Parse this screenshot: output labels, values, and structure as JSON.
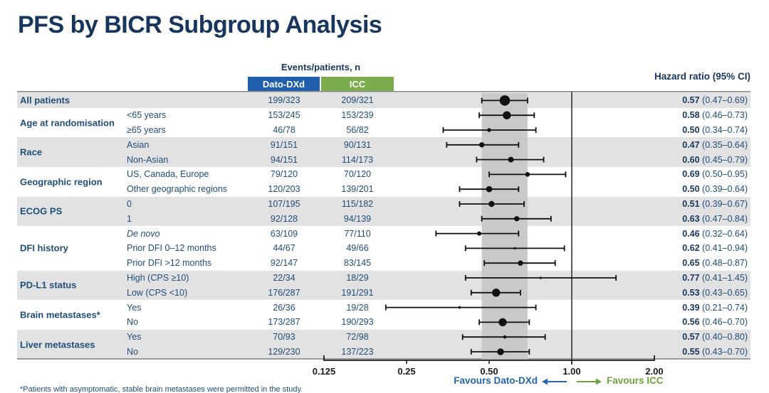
{
  "title": "PFS by BICR Subgroup Analysis",
  "header": {
    "events_label": "Events/patients, n",
    "arm1": "Dato-DXd",
    "arm2": "ICC",
    "hr_label": "Hazard ratio (95% CI)"
  },
  "legend": {
    "left_label": "Favours Dato-DXd",
    "right_label": "Favours ICC"
  },
  "footnote": "*Patients with asymptomatic, stable brain metastases were permitted in the study.",
  "colors": {
    "dato_blue": "#1F5FAD",
    "icc_green": "#7BAC4D",
    "navy_text": "#1F4E79",
    "title_navy": "#17365D",
    "stripe_gray": "#E2E2E2",
    "band_gray": "#C9C9C9",
    "marker_black": "#111111"
  },
  "chart_data": {
    "type": "forest",
    "x_scale": "log2",
    "axis": {
      "ticks": [
        0.125,
        0.25,
        0.5,
        1.0,
        2.0
      ],
      "tick_labels": [
        "0.125",
        "0.25",
        "0.50",
        "1.00",
        "2.00"
      ],
      "ref_line": 1.0,
      "shaded_band": [
        0.47,
        0.69
      ]
    },
    "groups": [
      {
        "label": "All patients",
        "shaded": true,
        "rows": [
          {
            "sub": "",
            "dato": "199/323",
            "icc": "209/321",
            "est": 0.57,
            "lo": 0.47,
            "hi": 0.69,
            "hr": "0.57",
            "ci": "(0.47–0.69)",
            "r": 7.3
          }
        ]
      },
      {
        "label": "Age at randomisation",
        "shaded": false,
        "rows": [
          {
            "sub": "<65 years",
            "dato": "153/245",
            "icc": "153/239",
            "est": 0.58,
            "lo": 0.46,
            "hi": 0.73,
            "hr": "0.58",
            "ci": "(0.46–0.73)",
            "r": 5.7
          },
          {
            "sub": "≥65 years",
            "dato": "46/78",
            "icc": "56/82",
            "est": 0.5,
            "lo": 0.34,
            "hi": 0.74,
            "hr": "0.50",
            "ci": "(0.34–0.74)",
            "r": 2.7
          }
        ]
      },
      {
        "label": "Race",
        "shaded": true,
        "rows": [
          {
            "sub": "Asian",
            "dato": "91/151",
            "icc": "90/131",
            "est": 0.47,
            "lo": 0.35,
            "hi": 0.64,
            "hr": "0.47",
            "ci": "(0.35–0.64)",
            "r": 3.7
          },
          {
            "sub": "Non-Asian",
            "dato": "94/151",
            "icc": "114/173",
            "est": 0.6,
            "lo": 0.45,
            "hi": 0.79,
            "hr": "0.60",
            "ci": "(0.45–0.79)",
            "r": 4.0
          }
        ]
      },
      {
        "label": "Geographic region",
        "shaded": false,
        "rows": [
          {
            "sub": "US, Canada, Europe",
            "dato": "79/120",
            "icc": "70/120",
            "est": 0.69,
            "lo": 0.5,
            "hi": 0.95,
            "hr": "0.69",
            "ci": "(0.50–0.95)",
            "r": 3.3
          },
          {
            "sub": "Other geographic regions",
            "dato": "120/203",
            "icc": "139/201",
            "est": 0.5,
            "lo": 0.39,
            "hi": 0.64,
            "hr": "0.50",
            "ci": "(0.39–0.64)",
            "r": 4.3
          }
        ]
      },
      {
        "label": "ECOG PS",
        "shaded": true,
        "rows": [
          {
            "sub": "0",
            "dato": "107/195",
            "icc": "115/182",
            "est": 0.51,
            "lo": 0.39,
            "hi": 0.67,
            "hr": "0.51",
            "ci": "(0.39–0.67)",
            "r": 4.2
          },
          {
            "sub": "1",
            "dato": "92/128",
            "icc": "94/139",
            "est": 0.63,
            "lo": 0.47,
            "hi": 0.84,
            "hr": "0.63",
            "ci": "(0.47–0.84)",
            "r": 3.7
          }
        ]
      },
      {
        "label": "DFI history",
        "shaded": false,
        "rows": [
          {
            "sub": "De novo",
            "italic": true,
            "dato": "63/109",
            "icc": "77/110",
            "est": 0.46,
            "lo": 0.32,
            "hi": 0.64,
            "hr": "0.46",
            "ci": "(0.32–0.64)",
            "r": 3.0
          },
          {
            "sub": "Prior DFI 0–12 months",
            "dato": "44/67",
            "icc": "49/66",
            "est": 0.62,
            "lo": 0.41,
            "hi": 0.94,
            "hr": "0.62",
            "ci": "(0.41–0.94)",
            "r": 1.7
          },
          {
            "sub": "Prior DFI >12 months",
            "dato": "92/147",
            "icc": "83/145",
            "est": 0.65,
            "lo": 0.48,
            "hi": 0.87,
            "hr": "0.65",
            "ci": "(0.48–0.87)",
            "r": 3.7
          }
        ]
      },
      {
        "label": "PD-L1 status",
        "shaded": true,
        "rows": [
          {
            "sub": "High (CPS ≥10)",
            "dato": "22/34",
            "icc": "18/29",
            "est": 0.77,
            "lo": 0.41,
            "hi": 1.45,
            "hr": "0.77",
            "ci": "(0.41–1.45)",
            "r": 1.6
          },
          {
            "sub": "Low (CPS <10)",
            "dato": "176/287",
            "icc": "191/291",
            "est": 0.53,
            "lo": 0.43,
            "hi": 0.65,
            "hr": "0.53",
            "ci": "(0.43–0.65)",
            "r": 5.7
          }
        ]
      },
      {
        "label": "Brain metastases*",
        "shaded": false,
        "rows": [
          {
            "sub": "Yes",
            "dato": "26/36",
            "icc": "19/28",
            "est": 0.39,
            "lo": 0.21,
            "hi": 0.74,
            "hr": "0.39",
            "ci": "(0.21–0.74)",
            "r": 1.8
          },
          {
            "sub": "No",
            "dato": "173/287",
            "icc": "190/293",
            "est": 0.56,
            "lo": 0.46,
            "hi": 0.7,
            "hr": "0.56",
            "ci": "(0.46–0.70)",
            "r": 5.7
          }
        ]
      },
      {
        "label": "Liver metastases",
        "shaded": true,
        "rows": [
          {
            "sub": "Yes",
            "dato": "70/93",
            "icc": "72/98",
            "est": 0.57,
            "lo": 0.4,
            "hi": 0.8,
            "hr": "0.57",
            "ci": "(0.40–0.80)",
            "r": 2.3
          },
          {
            "sub": "No",
            "dato": "129/230",
            "icc": "137/223",
            "est": 0.55,
            "lo": 0.43,
            "hi": 0.7,
            "hr": "0.55",
            "ci": "(0.43–0.70)",
            "r": 4.7
          }
        ]
      }
    ]
  }
}
